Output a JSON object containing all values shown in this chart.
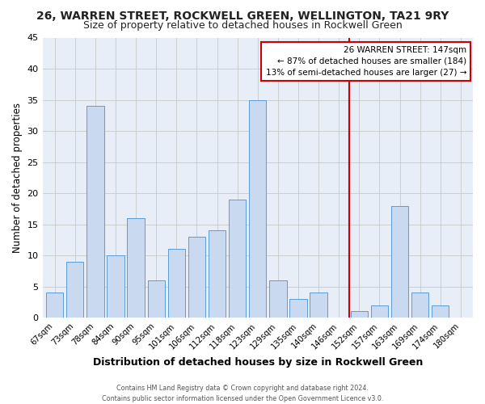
{
  "title": "26, WARREN STREET, ROCKWELL GREEN, WELLINGTON, TA21 9RY",
  "subtitle": "Size of property relative to detached houses in Rockwell Green",
  "xlabel": "Distribution of detached houses by size in Rockwell Green",
  "ylabel": "Number of detached properties",
  "bar_labels": [
    "67sqm",
    "73sqm",
    "78sqm",
    "84sqm",
    "90sqm",
    "95sqm",
    "101sqm",
    "106sqm",
    "112sqm",
    "118sqm",
    "123sqm",
    "129sqm",
    "135sqm",
    "140sqm",
    "146sqm",
    "152sqm",
    "157sqm",
    "163sqm",
    "169sqm",
    "174sqm",
    "180sqm"
  ],
  "bar_values": [
    4,
    9,
    34,
    10,
    16,
    6,
    11,
    13,
    14,
    19,
    35,
    6,
    3,
    4,
    0,
    1,
    2,
    18,
    4,
    2,
    0
  ],
  "bar_color": "#c9d9f0",
  "bar_edge_color": "#5b9bd5",
  "vline_x": 14.5,
  "vline_color": "#cc0000",
  "annotation_title": "26 WARREN STREET: 147sqm",
  "annotation_line1": "← 87% of detached houses are smaller (184)",
  "annotation_line2": "13% of semi-detached houses are larger (27) →",
  "annotation_box_edge": "#cc0000",
  "ylim": [
    0,
    45
  ],
  "yticks": [
    0,
    5,
    10,
    15,
    20,
    25,
    30,
    35,
    40,
    45
  ],
  "footer_line1": "Contains HM Land Registry data © Crown copyright and database right 2024.",
  "footer_line2": "Contains public sector information licensed under the Open Government Licence v3.0.",
  "plot_bg_color": "#e8eef8",
  "fig_bg_color": "#ffffff",
  "grid_color": "#c8c8c8",
  "title_fontsize": 10,
  "subtitle_fontsize": 9
}
